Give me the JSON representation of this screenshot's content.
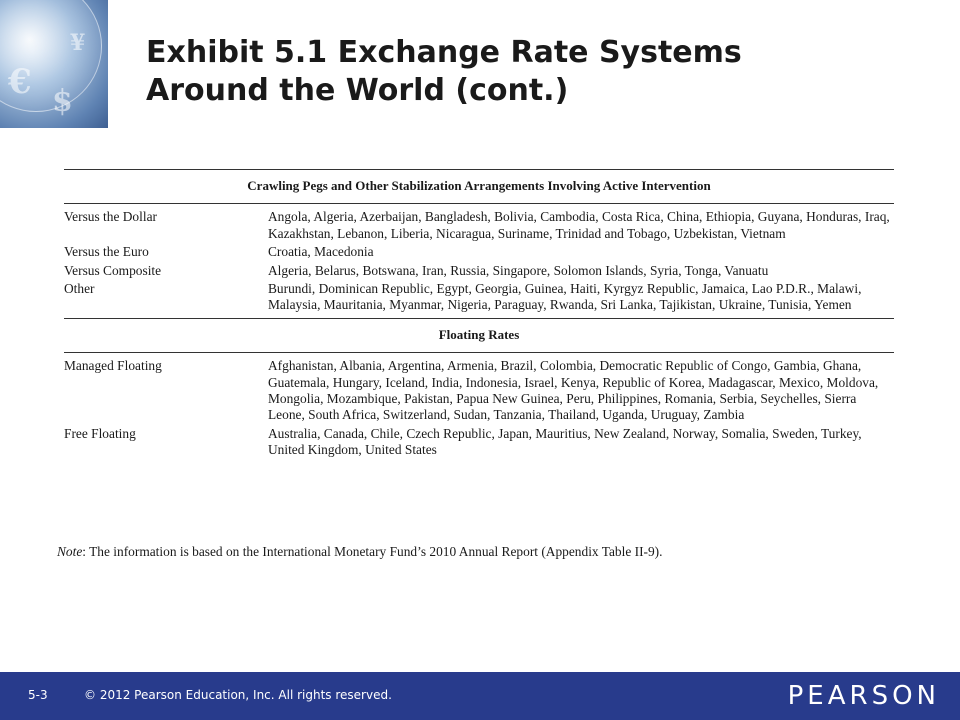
{
  "title": {
    "line1": "Exhibit 5.1  Exchange Rate Systems",
    "line2": "Around the World (cont.)"
  },
  "table": {
    "sections": [
      {
        "heading": "Crawling Pegs and Other Stabilization Arrangements Involving Active Intervention",
        "rows": [
          {
            "label": "Versus the Dollar",
            "countries": "Angola, Algeria, Azerbaijan, Bangladesh, Bolivia, Cambodia, Costa Rica, China, Ethiopia, Guyana, Honduras, Iraq, Kazakhstan, Lebanon, Liberia, Nicaragua, Suriname, Trinidad and Tobago, Uzbekistan, Vietnam"
          },
          {
            "label": "Versus the Euro",
            "countries": "Croatia, Macedonia"
          },
          {
            "label": "Versus Composite",
            "countries": "Algeria, Belarus, Botswana, Iran, Russia, Singapore, Solomon Islands, Syria, Tonga, Vanuatu"
          },
          {
            "label": "Other",
            "countries": "Burundi, Dominican Republic, Egypt, Georgia, Guinea, Haiti, Kyrgyz Republic, Jamaica, Lao P.D.R., Malawi, Malaysia, Mauritania, Myanmar, Nigeria, Paraguay, Rwanda, Sri Lanka, Tajikistan, Ukraine, Tunisia, Yemen"
          }
        ]
      },
      {
        "heading": "Floating Rates",
        "rows": [
          {
            "label": "Managed Floating",
            "countries": "Afghanistan, Albania, Argentina, Armenia, Brazil, Colombia, Democratic Republic of Congo, Gambia, Ghana, Guatemala, Hungary, Iceland, India, Indonesia, Israel, Kenya, Republic of Korea, Madagascar, Mexico, Moldova, Mongolia, Mozambique, Pakistan, Papua New Guinea, Peru, Philippines, Romania, Serbia, Seychelles, Sierra Leone, South Africa, Switzerland, Sudan, Tanzania, Thailand, Uganda, Uruguay, Zambia"
          },
          {
            "label": "Free Floating",
            "countries": "Australia, Canada, Chile, Czech Republic, Japan, Mauritius, New Zealand, Norway, Somalia, Sweden, Turkey, United Kingdom, United States"
          }
        ]
      }
    ]
  },
  "note": {
    "label": "Note",
    "text": ": The information is based on the International Monetary Fund’s 2010 Annual Report (Appendix Table II-9)."
  },
  "footer": {
    "slide_number": "5-3",
    "copyright": "© 2012 Pearson Education, Inc. All rights reserved.",
    "logo": "PEARSON"
  },
  "colors": {
    "footer_bg": "#283b8c"
  }
}
